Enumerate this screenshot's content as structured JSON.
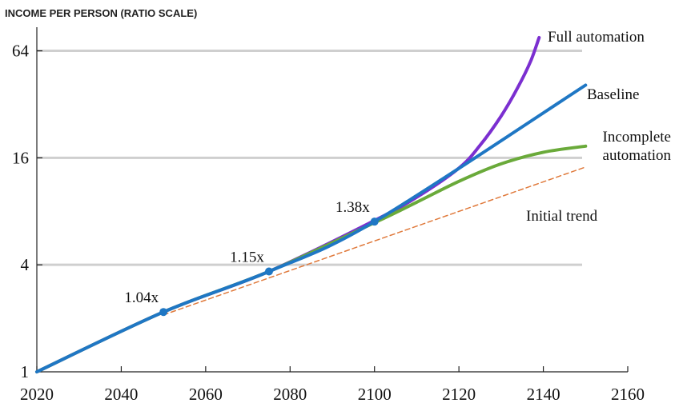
{
  "chart_data": {
    "type": "line",
    "title": "INCOME PER PERSON (RATIO SCALE)",
    "xlabel": "",
    "ylabel": "",
    "y_scale": "log2",
    "xlim": [
      2020,
      2160
    ],
    "ylim": [
      1,
      100
    ],
    "x_ticks": [
      2020,
      2040,
      2060,
      2080,
      2100,
      2120,
      2140,
      2160
    ],
    "y_ticks": [
      1,
      4,
      16,
      64
    ],
    "grid": "horizontal",
    "series": [
      {
        "name": "Full automation",
        "color": "#7b2fd0",
        "dash": "solid",
        "x": [
          2020,
          2050,
          2075,
          2100,
          2110,
          2120,
          2125,
          2130,
          2134,
          2137,
          2139
        ],
        "y": [
          1,
          2.17,
          3.67,
          7.1,
          9.6,
          14.0,
          18.8,
          27.5,
          40,
          56,
          76
        ]
      },
      {
        "name": "Baseline",
        "color": "#1f77c4",
        "dash": "solid",
        "x": [
          2020,
          2050,
          2075,
          2100,
          2150
        ],
        "y": [
          1,
          2.17,
          3.67,
          7.0,
          41
        ]
      },
      {
        "name": "Incomplete automation",
        "color": "#6aaa3a",
        "dash": "solid",
        "x": [
          2020,
          2050,
          2075,
          2100,
          2110,
          2120,
          2130,
          2140,
          2150
        ],
        "y": [
          1,
          2.17,
          3.67,
          6.9,
          9.0,
          11.8,
          14.8,
          17.2,
          18.6
        ]
      },
      {
        "name": "Initial trend",
        "color": "#e07a3c",
        "dash": "dashed",
        "x": [
          2050,
          2150
        ],
        "y": [
          2.09,
          14.2
        ]
      }
    ],
    "markers": [
      {
        "x": 2050,
        "y": 2.17,
        "label": "1.04x"
      },
      {
        "x": 2075,
        "y": 3.67,
        "label": "1.15x"
      },
      {
        "x": 2100,
        "y": 7.0,
        "label": "1.38x"
      }
    ],
    "series_labels": [
      {
        "lines": [
          "Full automation"
        ]
      },
      {
        "lines": [
          "Baseline"
        ]
      },
      {
        "lines": [
          "Incomplete",
          "automation"
        ]
      },
      {
        "lines": [
          "Initial trend"
        ]
      }
    ]
  }
}
